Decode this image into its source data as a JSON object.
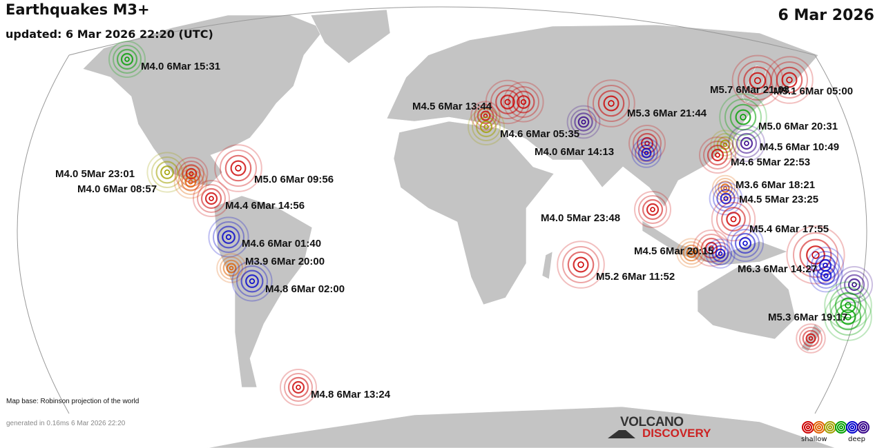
{
  "header": {
    "title": "Earthquakes M3+",
    "updated": "updated:  6 Mar 2026 22:20 (UTC)",
    "date": "6 Mar 2026"
  },
  "footer": {
    "map_base": "Map base: Robinson projection of the world",
    "generated": "generated in 0.16ms  6 Mar 2026 22:20"
  },
  "logo": {
    "line1": "VOLCANO",
    "line2": "DISCOVERY"
  },
  "legend": {
    "shallow": "shallow",
    "deep": "deep",
    "colors": [
      "#cc0000",
      "#e06000",
      "#a0a000",
      "#00a000",
      "#0000cc",
      "#330088"
    ]
  },
  "depth_colors": {
    "shallow": "#cc0000",
    "shallow2": "#e06000",
    "mid": "#a0a000",
    "mid2": "#00a000",
    "deep": "#0000cc",
    "deepest": "#330088"
  },
  "labels": [
    "M4.0  6Mar 15:31",
    "M4.0  5Mar 23:01",
    "M4.0  6Mar 08:57",
    "M5.0  6Mar 09:56",
    "M4.4  6Mar 14:56",
    "M4.6  6Mar 01:40",
    "M3.9  6Mar 20:00",
    "M4.8  6Mar 02:00",
    "M4.8  6Mar 13:24",
    "M4.5  6Mar 13:44",
    "M4.6  6Mar 05:35",
    "M5.3  6Mar 21:44",
    "M4.0  6Mar 14:13",
    "M4.0  5Mar 23:48",
    "M5.2  6Mar 11:52",
    "M5.7  6Mar 21:08",
    "M5.1  6Mar 05:00",
    "M5.0  6Mar 20:31",
    "M4.5  6Mar 10:49",
    "M4.6  5Mar 22:53",
    "M3.6  6Mar 18:21",
    "M4.5  5Mar 23:25",
    "M5.4  6Mar 17:55",
    "M4.5  6Mar 20:15",
    "M6.3  6Mar 14:27",
    "M5.3  6Mar 19:17"
  ]
}
